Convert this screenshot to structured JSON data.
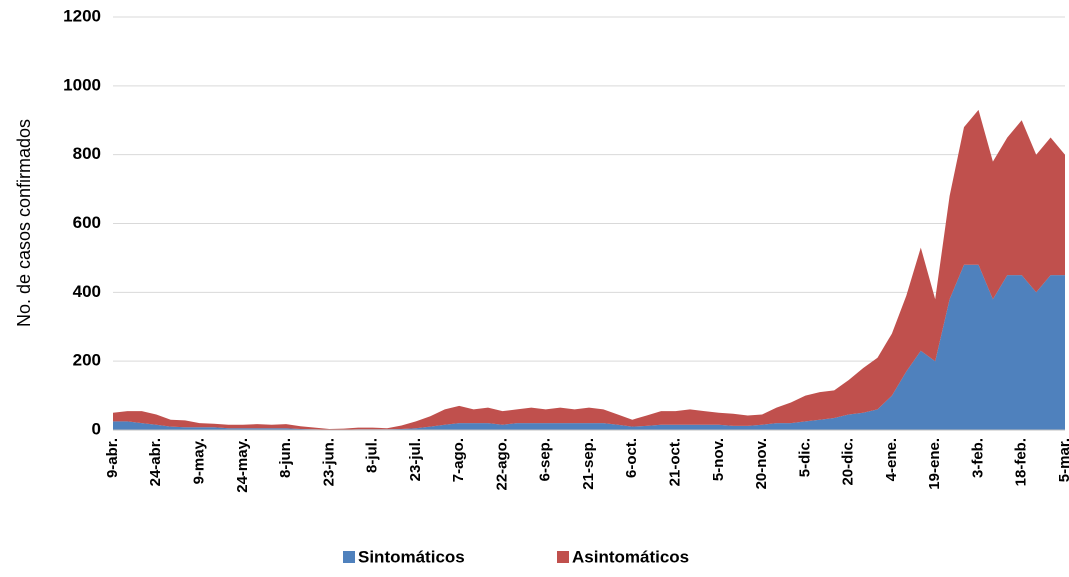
{
  "chart_data": {
    "type": "area",
    "stacked": true,
    "ylabel": "No. de casos confirmados",
    "categories": [
      "9-abr.",
      null,
      null,
      "24-abr.",
      null,
      null,
      "9-may.",
      null,
      null,
      "24-may.",
      null,
      null,
      "8-jun.",
      null,
      null,
      "23-jun.",
      null,
      null,
      "8-jul.",
      null,
      null,
      "23-jul.",
      null,
      null,
      "7-ago.",
      null,
      null,
      "22-ago.",
      null,
      null,
      "6-sep.",
      null,
      null,
      "21-sep.",
      null,
      null,
      "6-oct.",
      null,
      null,
      "21-oct.",
      null,
      null,
      "5-nov.",
      null,
      null,
      "20-nov.",
      null,
      null,
      "5-dic.",
      null,
      null,
      "20-dic.",
      null,
      null,
      "4-ene.",
      null,
      null,
      "19-ene.",
      null,
      null,
      "3-feb.",
      null,
      null,
      "18-feb.",
      null,
      null,
      "5-mar."
    ],
    "series": [
      {
        "name": "Sintomáticos",
        "color": "#4f81bd",
        "values": [
          25,
          25,
          20,
          15,
          10,
          8,
          8,
          8,
          5,
          5,
          5,
          5,
          5,
          3,
          2,
          1,
          1,
          2,
          2,
          2,
          3,
          5,
          10,
          15,
          20,
          20,
          20,
          15,
          20,
          20,
          20,
          20,
          20,
          20,
          20,
          15,
          10,
          12,
          15,
          15,
          15,
          15,
          15,
          12,
          12,
          15,
          20,
          20,
          25,
          30,
          35,
          45,
          50,
          60,
          100,
          170,
          230,
          200,
          380,
          480,
          480,
          380,
          450,
          450,
          400,
          450,
          450
        ]
      },
      {
        "name": "Asintomáticos",
        "color": "#c0504d",
        "values": [
          25,
          30,
          35,
          30,
          20,
          20,
          12,
          10,
          10,
          10,
          12,
          10,
          12,
          8,
          5,
          2,
          3,
          5,
          5,
          3,
          10,
          20,
          30,
          45,
          50,
          40,
          45,
          40,
          40,
          45,
          40,
          45,
          40,
          45,
          40,
          30,
          20,
          30,
          40,
          40,
          45,
          40,
          35,
          35,
          30,
          30,
          45,
          60,
          75,
          80,
          80,
          100,
          130,
          150,
          180,
          220,
          300,
          180,
          300,
          400,
          450,
          400,
          400,
          450,
          400,
          400,
          350
        ]
      }
    ],
    "ylim": [
      0,
      1200
    ],
    "yticks": [
      0,
      200,
      400,
      600,
      800,
      1000,
      1200
    ],
    "grid": true,
    "legend": "bottom"
  }
}
